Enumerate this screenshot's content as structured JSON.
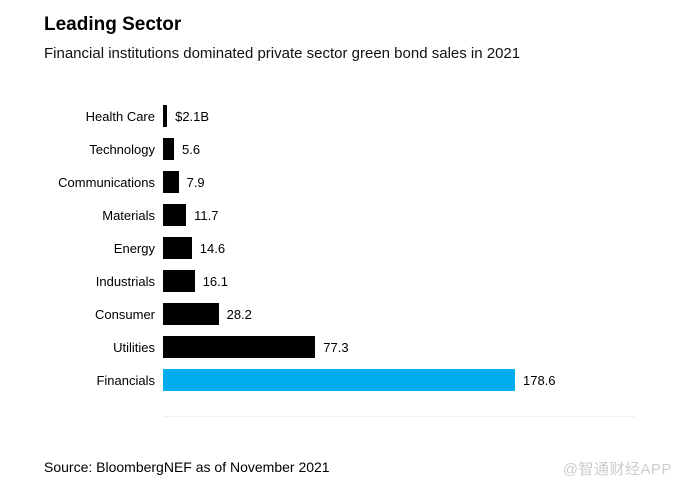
{
  "header": {
    "title": "Leading Sector",
    "subtitle": "Financial institutions dominated private sector green bond sales in 2021"
  },
  "chart_data": {
    "type": "bar",
    "orientation": "horizontal",
    "title": "Leading Sector",
    "subtitle": "Financial institutions dominated private sector green bond sales in 2021",
    "categories": [
      "Health Care",
      "Technology",
      "Communications",
      "Materials",
      "Energy",
      "Industrials",
      "Consumer",
      "Utilities",
      "Financials"
    ],
    "values": [
      2.1,
      5.6,
      7.9,
      11.7,
      14.6,
      16.1,
      28.2,
      77.3,
      178.6
    ],
    "value_labels": [
      "$2.1B",
      "5.6",
      "7.9",
      "11.7",
      "14.6",
      "16.1",
      "28.2",
      "77.3",
      "178.6"
    ],
    "unit": "$B",
    "xlabel": "",
    "ylabel": "",
    "xlim": [
      0,
      178.6
    ],
    "grid": false,
    "legend": "none",
    "bar_color": "#000000",
    "highlight_category": "Financials",
    "highlight_color": "#00AEEF"
  },
  "footer": {
    "source": "Source: BloombergNEF as of November 2021"
  },
  "watermark": "@智通财经APP"
}
